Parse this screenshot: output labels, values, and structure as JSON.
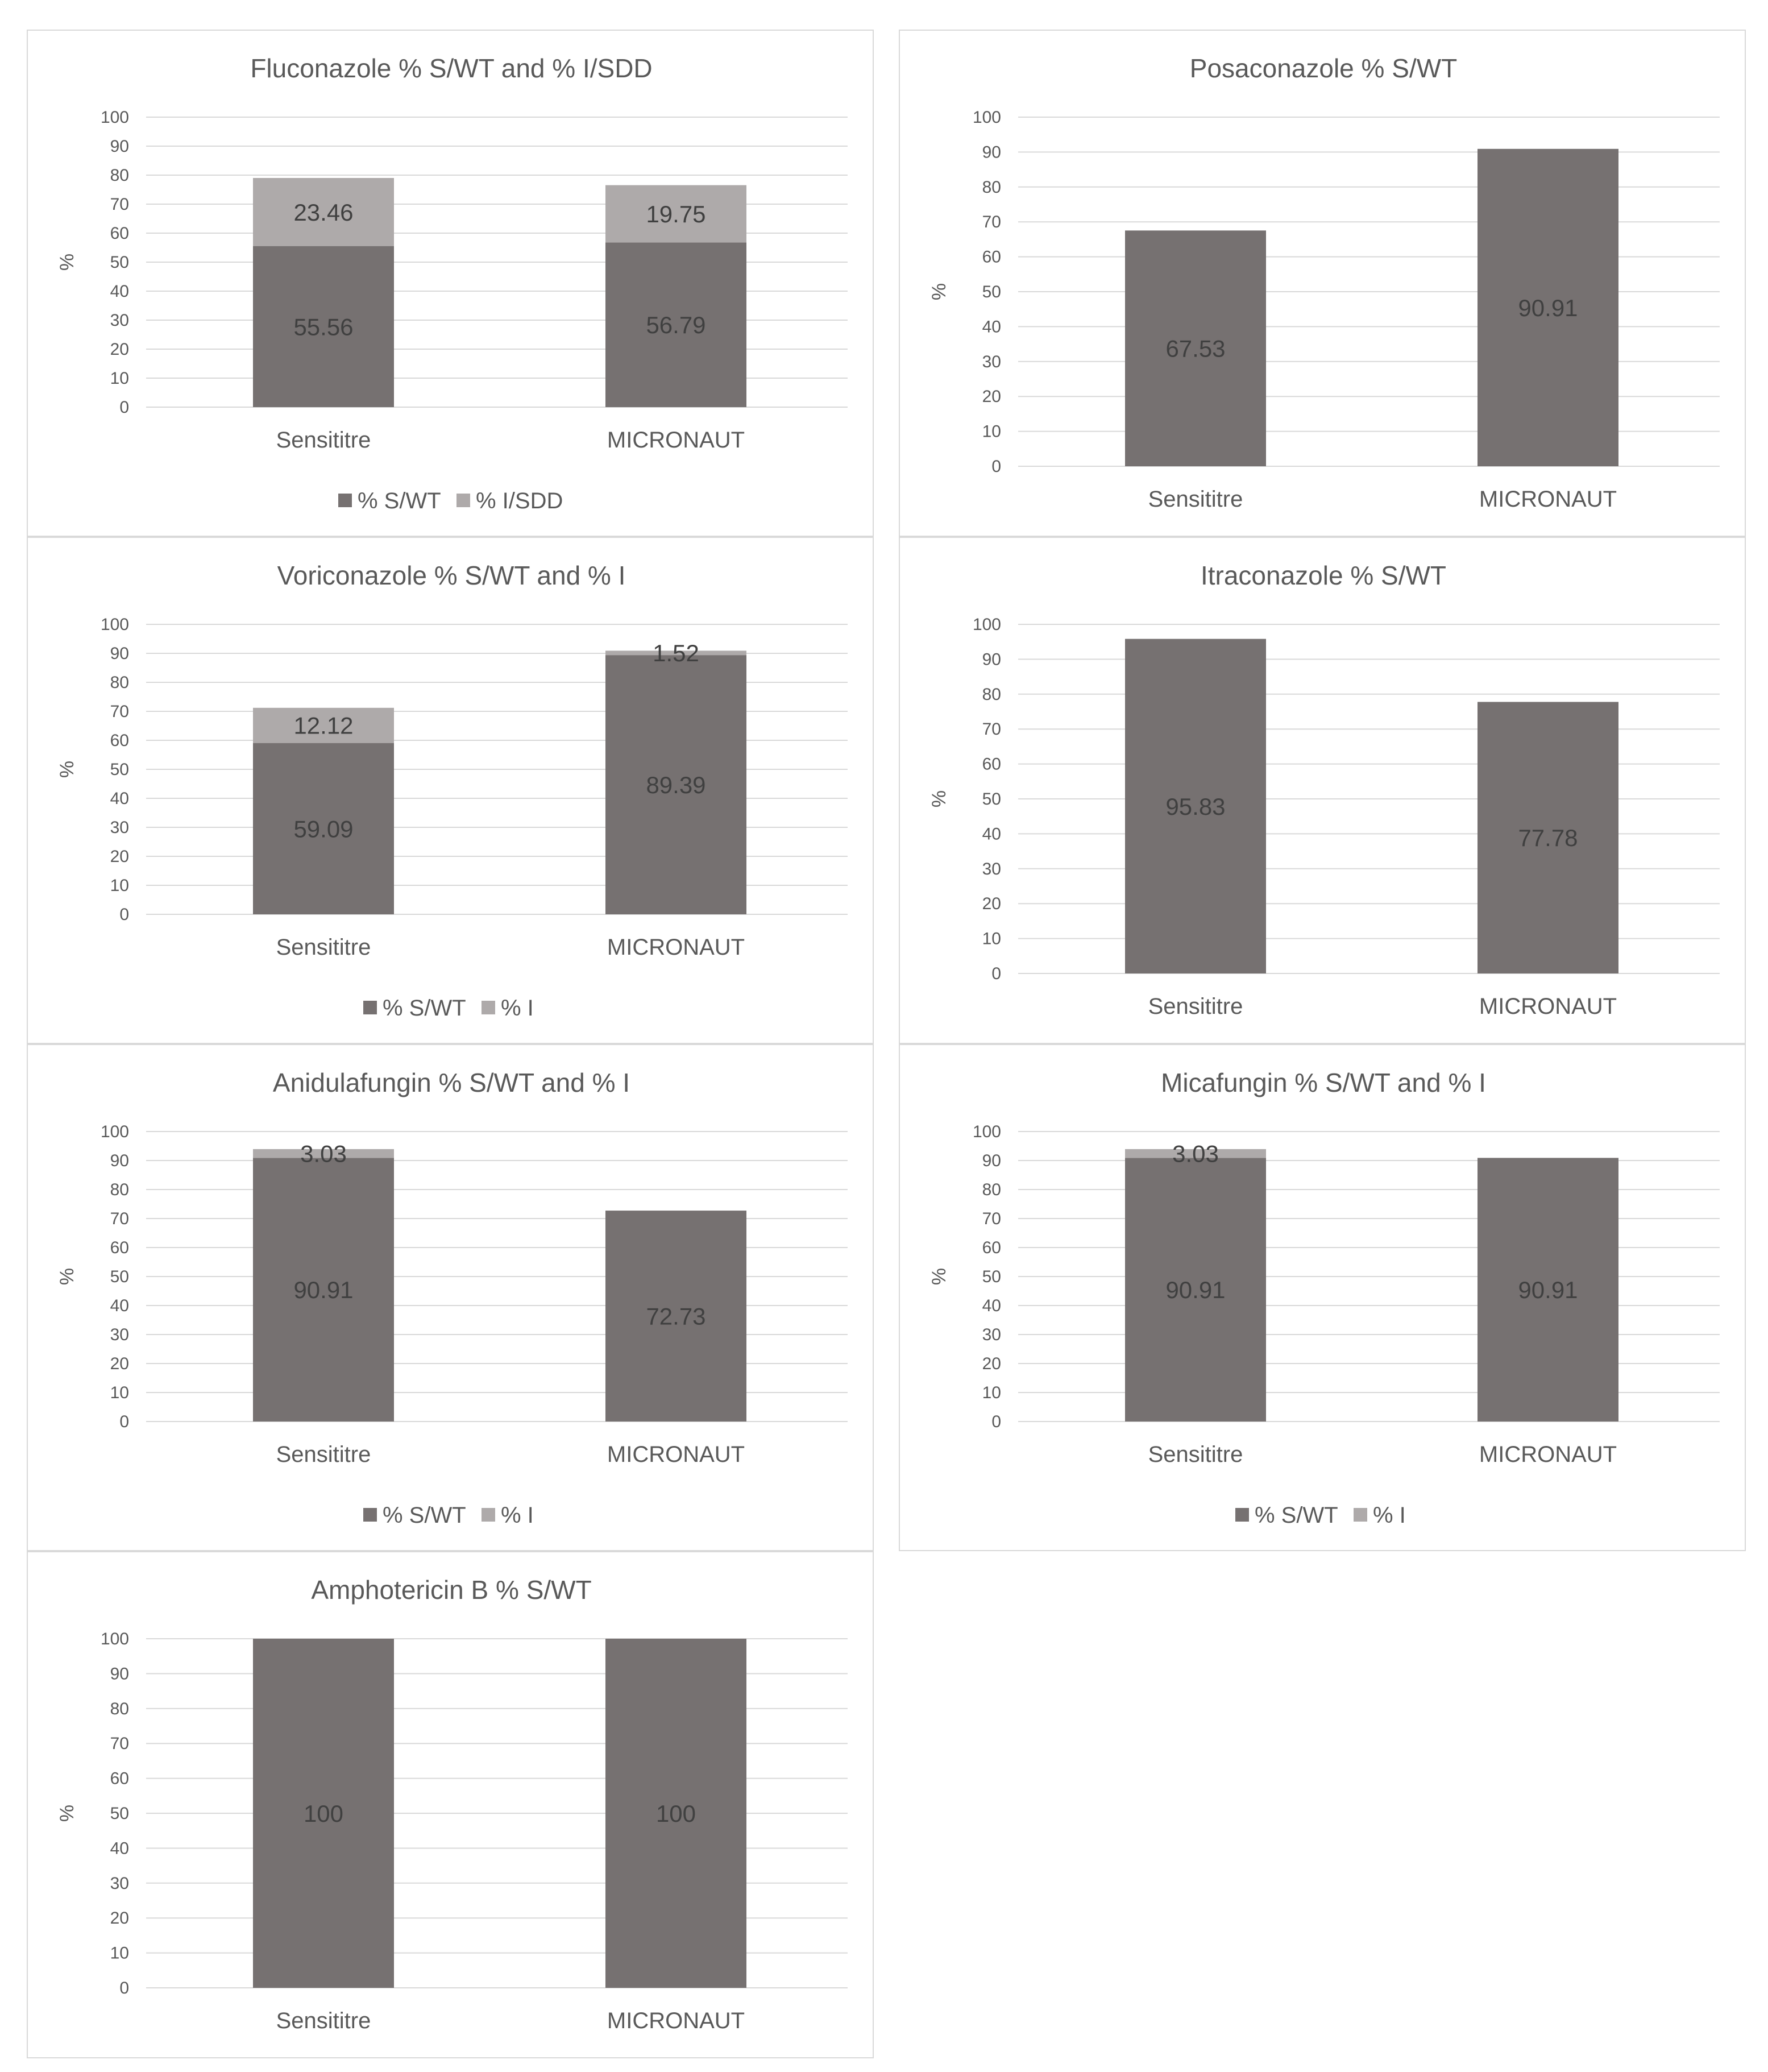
{
  "chart_data": [
    {
      "type": "bar",
      "title": "Fluconazole % S/WT and % I/SDD",
      "ylabel": "%",
      "ylim": [
        0,
        100
      ],
      "yticks": [
        0,
        10,
        20,
        30,
        40,
        50,
        60,
        70,
        80,
        90,
        100
      ],
      "categories": [
        "Sensititre",
        "MICRONAUT"
      ],
      "stacked": true,
      "legend": "bottom",
      "series": [
        {
          "name": "% S/WT",
          "values": [
            55.56,
            56.79
          ],
          "labels": [
            "55.56",
            "56.79"
          ],
          "color": "#767171"
        },
        {
          "name": "% I/SDD",
          "values": [
            23.46,
            19.75
          ],
          "labels": [
            "23.46",
            "19.75"
          ],
          "color": "#aeaaaa"
        }
      ]
    },
    {
      "type": "bar",
      "title": "Posaconazole % S/WT",
      "ylabel": "%",
      "ylim": [
        0,
        100
      ],
      "yticks": [
        0,
        10,
        20,
        30,
        40,
        50,
        60,
        70,
        80,
        90,
        100
      ],
      "categories": [
        "Sensititre",
        "MICRONAUT"
      ],
      "stacked": true,
      "series": [
        {
          "values": [
            67.53,
            90.91
          ],
          "labels": [
            "67.53",
            "90.91"
          ],
          "color": "#767171"
        }
      ]
    },
    {
      "type": "bar",
      "title": "Voriconazole % S/WT and % I",
      "ylabel": "%",
      "ylim": [
        0,
        100
      ],
      "yticks": [
        0,
        10,
        20,
        30,
        40,
        50,
        60,
        70,
        80,
        90,
        100
      ],
      "categories": [
        "Sensititre",
        "MICRONAUT"
      ],
      "stacked": true,
      "legend": "bottom",
      "series": [
        {
          "name": "% S/WT",
          "values": [
            59.09,
            89.39
          ],
          "labels": [
            "59.09",
            "89.39"
          ],
          "color": "#767171"
        },
        {
          "name": "% I",
          "values": [
            12.12,
            1.52
          ],
          "labels": [
            "12.12",
            "1.52"
          ],
          "color": "#aeaaaa"
        }
      ]
    },
    {
      "type": "bar",
      "title": "Itraconazole % S/WT",
      "ylabel": "%",
      "ylim": [
        0,
        100
      ],
      "yticks": [
        0,
        10,
        20,
        30,
        40,
        50,
        60,
        70,
        80,
        90,
        100
      ],
      "categories": [
        "Sensititre",
        "MICRONAUT"
      ],
      "stacked": true,
      "series": [
        {
          "values": [
            95.83,
            77.78
          ],
          "labels": [
            "95.83",
            "77.78"
          ],
          "color": "#767171"
        }
      ]
    },
    {
      "type": "bar",
      "title": "Anidulafungin % S/WT and % I",
      "ylabel": "%",
      "ylim": [
        0,
        100
      ],
      "yticks": [
        0,
        10,
        20,
        30,
        40,
        50,
        60,
        70,
        80,
        90,
        100
      ],
      "categories": [
        "Sensititre",
        "MICRONAUT"
      ],
      "stacked": true,
      "legend": "bottom",
      "series": [
        {
          "name": "% S/WT",
          "values": [
            90.91,
            72.73
          ],
          "labels": [
            "90.91",
            "72.73"
          ],
          "color": "#767171"
        },
        {
          "name": "% I",
          "values": [
            3.03,
            0
          ],
          "labels": [
            "3.03",
            ""
          ],
          "color": "#aeaaaa"
        }
      ]
    },
    {
      "type": "bar",
      "title": "Micafungin % S/WT and % I",
      "ylabel": "%",
      "ylim": [
        0,
        100
      ],
      "yticks": [
        0,
        10,
        20,
        30,
        40,
        50,
        60,
        70,
        80,
        90,
        100
      ],
      "categories": [
        "Sensititre",
        "MICRONAUT"
      ],
      "stacked": true,
      "legend": "bottom",
      "series": [
        {
          "name": "% S/WT",
          "values": [
            90.91,
            90.91
          ],
          "labels": [
            "90.91",
            "90.91"
          ],
          "color": "#767171"
        },
        {
          "name": "% I",
          "values": [
            3.03,
            0
          ],
          "labels": [
            "3.03",
            ""
          ],
          "color": "#aeaaaa"
        }
      ]
    },
    {
      "type": "bar",
      "title": "Amphotericin B % S/WT",
      "ylabel": "%",
      "ylim": [
        0,
        100
      ],
      "yticks": [
        0,
        10,
        20,
        30,
        40,
        50,
        60,
        70,
        80,
        90,
        100
      ],
      "categories": [
        "Sensititre",
        "MICRONAUT"
      ],
      "stacked": true,
      "series": [
        {
          "values": [
            100,
            100
          ],
          "labels": [
            "100",
            "100"
          ],
          "color": "#767171"
        }
      ]
    }
  ]
}
